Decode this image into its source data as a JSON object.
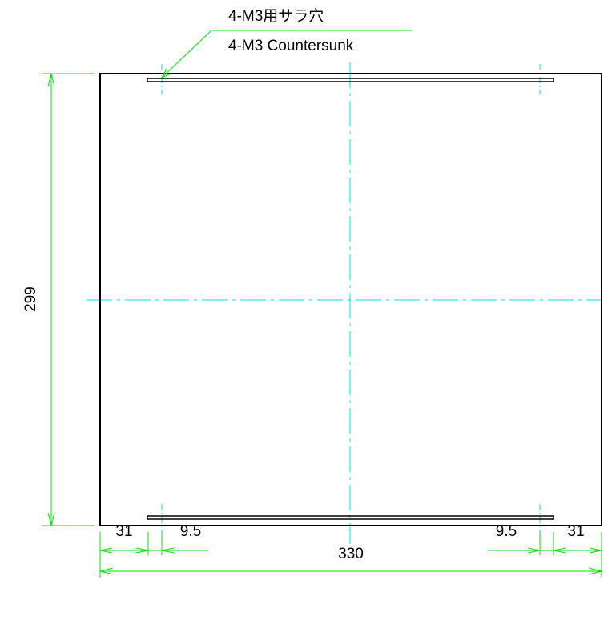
{
  "note": {
    "line_jp": "4-M3用サラ穴",
    "line_en": "4-M3 Countersunk"
  },
  "dimensions": {
    "height": "299",
    "width": "330",
    "left_offset": "31",
    "right_offset": "31",
    "left_hole_offset": "9.5",
    "right_hole_offset": "9.5"
  },
  "colors": {
    "outline": "#000000",
    "dimension": "#00e000",
    "centerline": "#00e0e0"
  }
}
